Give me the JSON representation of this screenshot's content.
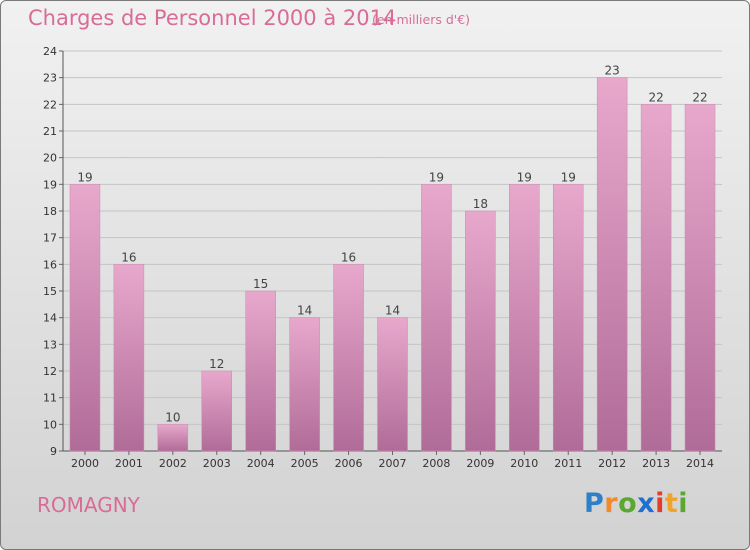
{
  "title": "Charges de Personnel 2000 à 2014",
  "subtitle": "(en milliers d'€)",
  "city": "ROMAGNY",
  "logo": {
    "letters": [
      {
        "char": "P",
        "color": "#2f7fc8"
      },
      {
        "char": "r",
        "color": "#f18a2a"
      },
      {
        "char": "o",
        "color": "#5aa832"
      },
      {
        "char": "x",
        "color": "#1f6fd0"
      },
      {
        "char": "i",
        "color": "#e23c2c"
      },
      {
        "char": "t",
        "color": "#f1a42a"
      },
      {
        "char": "i",
        "color": "#5aa832"
      }
    ]
  },
  "colors": {
    "title": "#d86c97",
    "bar_top": "#e8a8cc",
    "bar_bottom": "#b06c98",
    "grid": "#c4c4c4"
  },
  "chart_data": {
    "type": "bar",
    "title": "Charges de Personnel 2000 à 2014",
    "subtitle": "(en milliers d'€)",
    "categories": [
      "2000",
      "2001",
      "2002",
      "2003",
      "2004",
      "2005",
      "2006",
      "2007",
      "2008",
      "2009",
      "2010",
      "2011",
      "2012",
      "2013",
      "2014"
    ],
    "values": [
      19,
      16,
      10,
      12,
      15,
      14,
      16,
      14,
      19,
      18,
      19,
      19,
      23,
      22,
      22
    ],
    "ylim": [
      9,
      24
    ],
    "yticks": [
      9,
      10,
      11,
      12,
      13,
      14,
      15,
      16,
      17,
      18,
      19,
      20,
      21,
      22,
      23,
      24
    ],
    "grid": true,
    "xlabel": "",
    "ylabel": ""
  }
}
